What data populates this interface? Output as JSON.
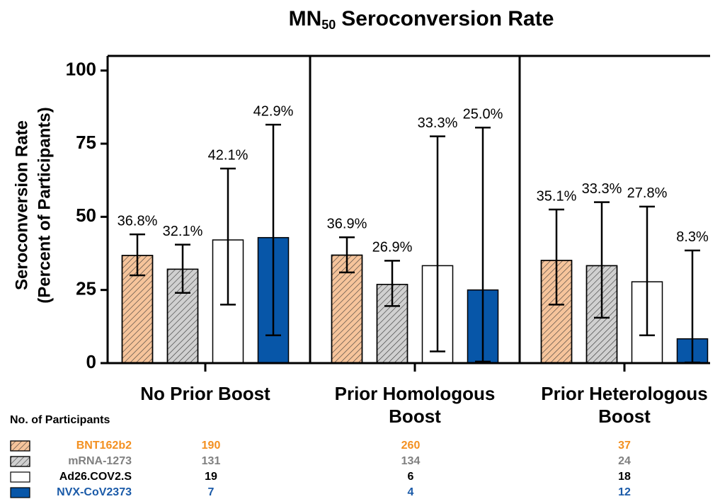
{
  "chart_data": {
    "type": "bar",
    "title": {
      "text": "MN",
      "subscript": "50",
      "rest": "Seroconversion Rate"
    },
    "ylabel": [
      "Seroconversion Rate",
      "(Percent of Participants)"
    ],
    "categories": [
      "No Prior Boost",
      "Prior Homologous Boost",
      "Prior Heterologous Boost"
    ],
    "ylim": [
      0,
      105
    ],
    "yticks": [
      0,
      25,
      50,
      75,
      100
    ],
    "series": [
      {
        "name": "BNT162b2",
        "color": "#f6c49b",
        "hatch": true,
        "text_color": "#f39020",
        "values": [
          36.8,
          36.9,
          35.1
        ],
        "value_labels": [
          "36.8%",
          "36.9%",
          "35.1%"
        ],
        "ci_low": [
          30,
          31,
          20
        ],
        "ci_high": [
          44,
          43,
          52.5
        ],
        "participants": [
          190,
          260,
          37
        ]
      },
      {
        "name": "mRNA-1273",
        "color": "#d0d0d0",
        "hatch": true,
        "text_color": "#808080",
        "values": [
          32.1,
          26.9,
          33.3
        ],
        "value_labels": [
          "32.1%",
          "26.9%",
          "33.3%"
        ],
        "ci_low": [
          24,
          19.5,
          15.5
        ],
        "ci_high": [
          40.5,
          35,
          55
        ],
        "participants": [
          131,
          134,
          24
        ]
      },
      {
        "name": "Ad26.COV2.S",
        "color": "#ffffff",
        "hatch": false,
        "text_color": "#000000",
        "values": [
          42.1,
          33.3,
          27.8
        ],
        "value_labels": [
          "42.1%",
          "33.3%",
          "27.8%"
        ],
        "ci_low": [
          20,
          4,
          9.5
        ],
        "ci_high": [
          66.5,
          77.5,
          53.5
        ],
        "participants": [
          19,
          6,
          18
        ]
      },
      {
        "name": "NVX-CoV2373",
        "color": "#0756a8",
        "hatch": false,
        "text_color": "#1a5aa8",
        "values": [
          42.9,
          25.0,
          8.3
        ],
        "value_labels": [
          "42.9%",
          "25.0%",
          "8.3%"
        ],
        "ci_low": [
          9.5,
          0.5,
          0.2
        ],
        "ci_high": [
          81.5,
          80.5,
          38.5
        ],
        "participants": [
          7,
          4,
          12
        ]
      }
    ],
    "table_title": "No. of Participants"
  }
}
